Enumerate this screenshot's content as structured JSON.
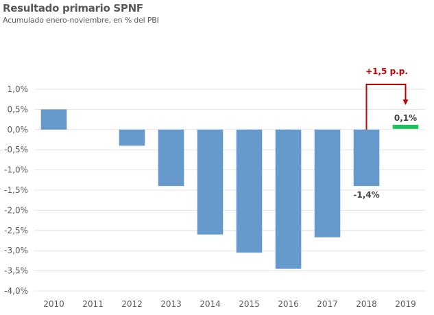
{
  "chart_data": {
    "type": "bar",
    "title": "Resultado primario SPNF",
    "subtitle": "Acumulado enero-noviembre, en % del PBI",
    "xlabel": "",
    "ylabel": "",
    "categories": [
      "2010",
      "2011",
      "2012",
      "2013",
      "2014",
      "2015",
      "2016",
      "2017",
      "2018",
      "2019"
    ],
    "values": [
      0.5,
      null,
      -0.4,
      -1.4,
      -2.6,
      -3.05,
      -3.45,
      -2.67,
      -1.4,
      0.1
    ],
    "bar_colors": [
      "#6699cc",
      "#6699cc",
      "#6699cc",
      "#6699cc",
      "#6699cc",
      "#6699cc",
      "#6699cc",
      "#6699cc",
      "#6699cc",
      "#1fbf5f"
    ],
    "ylim": [
      -4.0,
      1.0
    ],
    "yticks": [
      1.0,
      0.5,
      0.0,
      -0.5,
      -1.0,
      -1.5,
      -2.0,
      -2.5,
      -3.0,
      -3.5,
      -4.0
    ],
    "ytick_labels": [
      "1,0%",
      "0,5%",
      "0,0%",
      "-0,5%",
      "-1,0%",
      "-1,5%",
      "-2,0%",
      "-2,5%",
      "-3,0%",
      "-3,5%",
      "-4,0%"
    ],
    "grid": true,
    "legend": null,
    "data_labels": [
      {
        "category": "2018",
        "text": "-1,4%"
      },
      {
        "category": "2019",
        "text": "0,1%"
      }
    ],
    "annotations": [
      {
        "text": "+1,5 p.p.",
        "from": "2018",
        "to": "2019",
        "type": "arrow",
        "color": "#c00000"
      }
    ]
  }
}
